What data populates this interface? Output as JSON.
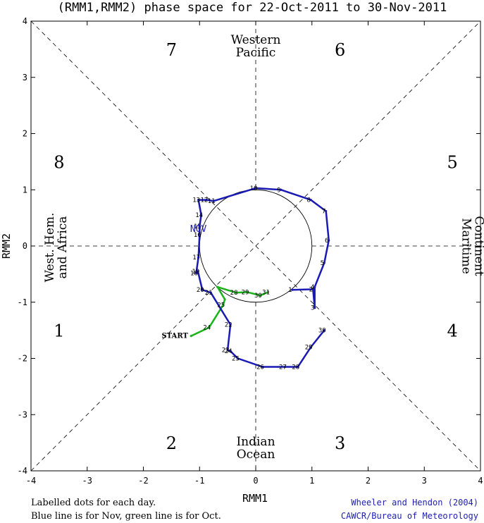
{
  "chart_data": {
    "type": "line",
    "title": "(RMM1,RMM2) phase space for 22-Oct-2011 to 30-Nov-2011",
    "xlabel": "RMM1",
    "ylabel": "RMM2",
    "xlim": [
      -4,
      4
    ],
    "ylim": [
      -4,
      4
    ],
    "ticks": [
      "-4",
      "-3",
      "-2",
      "-1",
      "0",
      "1",
      "2",
      "3",
      "4"
    ],
    "phases": [
      "1",
      "2",
      "3",
      "4",
      "5",
      "6",
      "7",
      "8"
    ],
    "regions": {
      "top": [
        "Western",
        "Pacific"
      ],
      "bottom": [
        "Indian",
        "Ocean"
      ],
      "right": [
        "Maritime",
        "Continent"
      ],
      "left": [
        "West. Hem.",
        "and Africa"
      ]
    },
    "start_label": "START",
    "month_label": "NOV",
    "series": [
      {
        "color": "#18b418",
        "labels": [
          "",
          "24",
          "25",
          "",
          "",
          "28",
          "29",
          "30",
          "31"
        ],
        "x": [
          -1.15,
          -0.83,
          -0.58,
          -0.55,
          -0.68,
          -0.35,
          -0.15,
          0.08,
          0.22
        ],
        "y": [
          -1.6,
          -1.45,
          -1.05,
          -0.95,
          -0.73,
          -0.83,
          -0.82,
          -0.88,
          -0.82
        ]
      },
      {
        "color": "#1a1ab4",
        "labels": [
          "1",
          "2",
          "3",
          "4",
          "5",
          "6",
          "7",
          "8",
          "9",
          "10",
          "11",
          "12",
          "13",
          "14",
          "15",
          "16",
          "17",
          "18",
          "19",
          "20",
          "21",
          "22",
          "23",
          "24",
          "25",
          "26",
          "27",
          "28",
          "29",
          "30"
        ],
        "x": [
          0.65,
          1.02,
          1.05,
          1.05,
          1.22,
          1.3,
          1.25,
          0.98,
          0.45,
          0.0,
          -0.75,
          -0.88,
          -1.02,
          -0.97,
          -1.0,
          -1.0,
          -1.02,
          -1.06,
          -1.03,
          -0.95,
          -0.8,
          -0.45,
          -0.5,
          -0.45,
          -0.32,
          0.12,
          0.52,
          0.75,
          0.98,
          1.22
        ],
        "y": [
          -0.78,
          -0.77,
          -1.1,
          -0.73,
          -0.3,
          0.1,
          0.62,
          0.82,
          1.0,
          1.03,
          0.8,
          0.82,
          0.82,
          0.55,
          0.35,
          0.2,
          -0.2,
          -0.48,
          -0.45,
          -0.78,
          -0.83,
          -1.4,
          -1.85,
          -1.87,
          -2.0,
          -2.15,
          -2.15,
          -2.15,
          -1.8,
          -1.5
        ]
      }
    ]
  },
  "footer": {
    "left_line1": "Labelled dots for each day.",
    "left_line2": "Blue line is for Nov, green line is for Oct.",
    "right_line1": "Wheeler and Hendon (2004)",
    "right_line2": "CAWCR/Bureau of Meteorology"
  }
}
